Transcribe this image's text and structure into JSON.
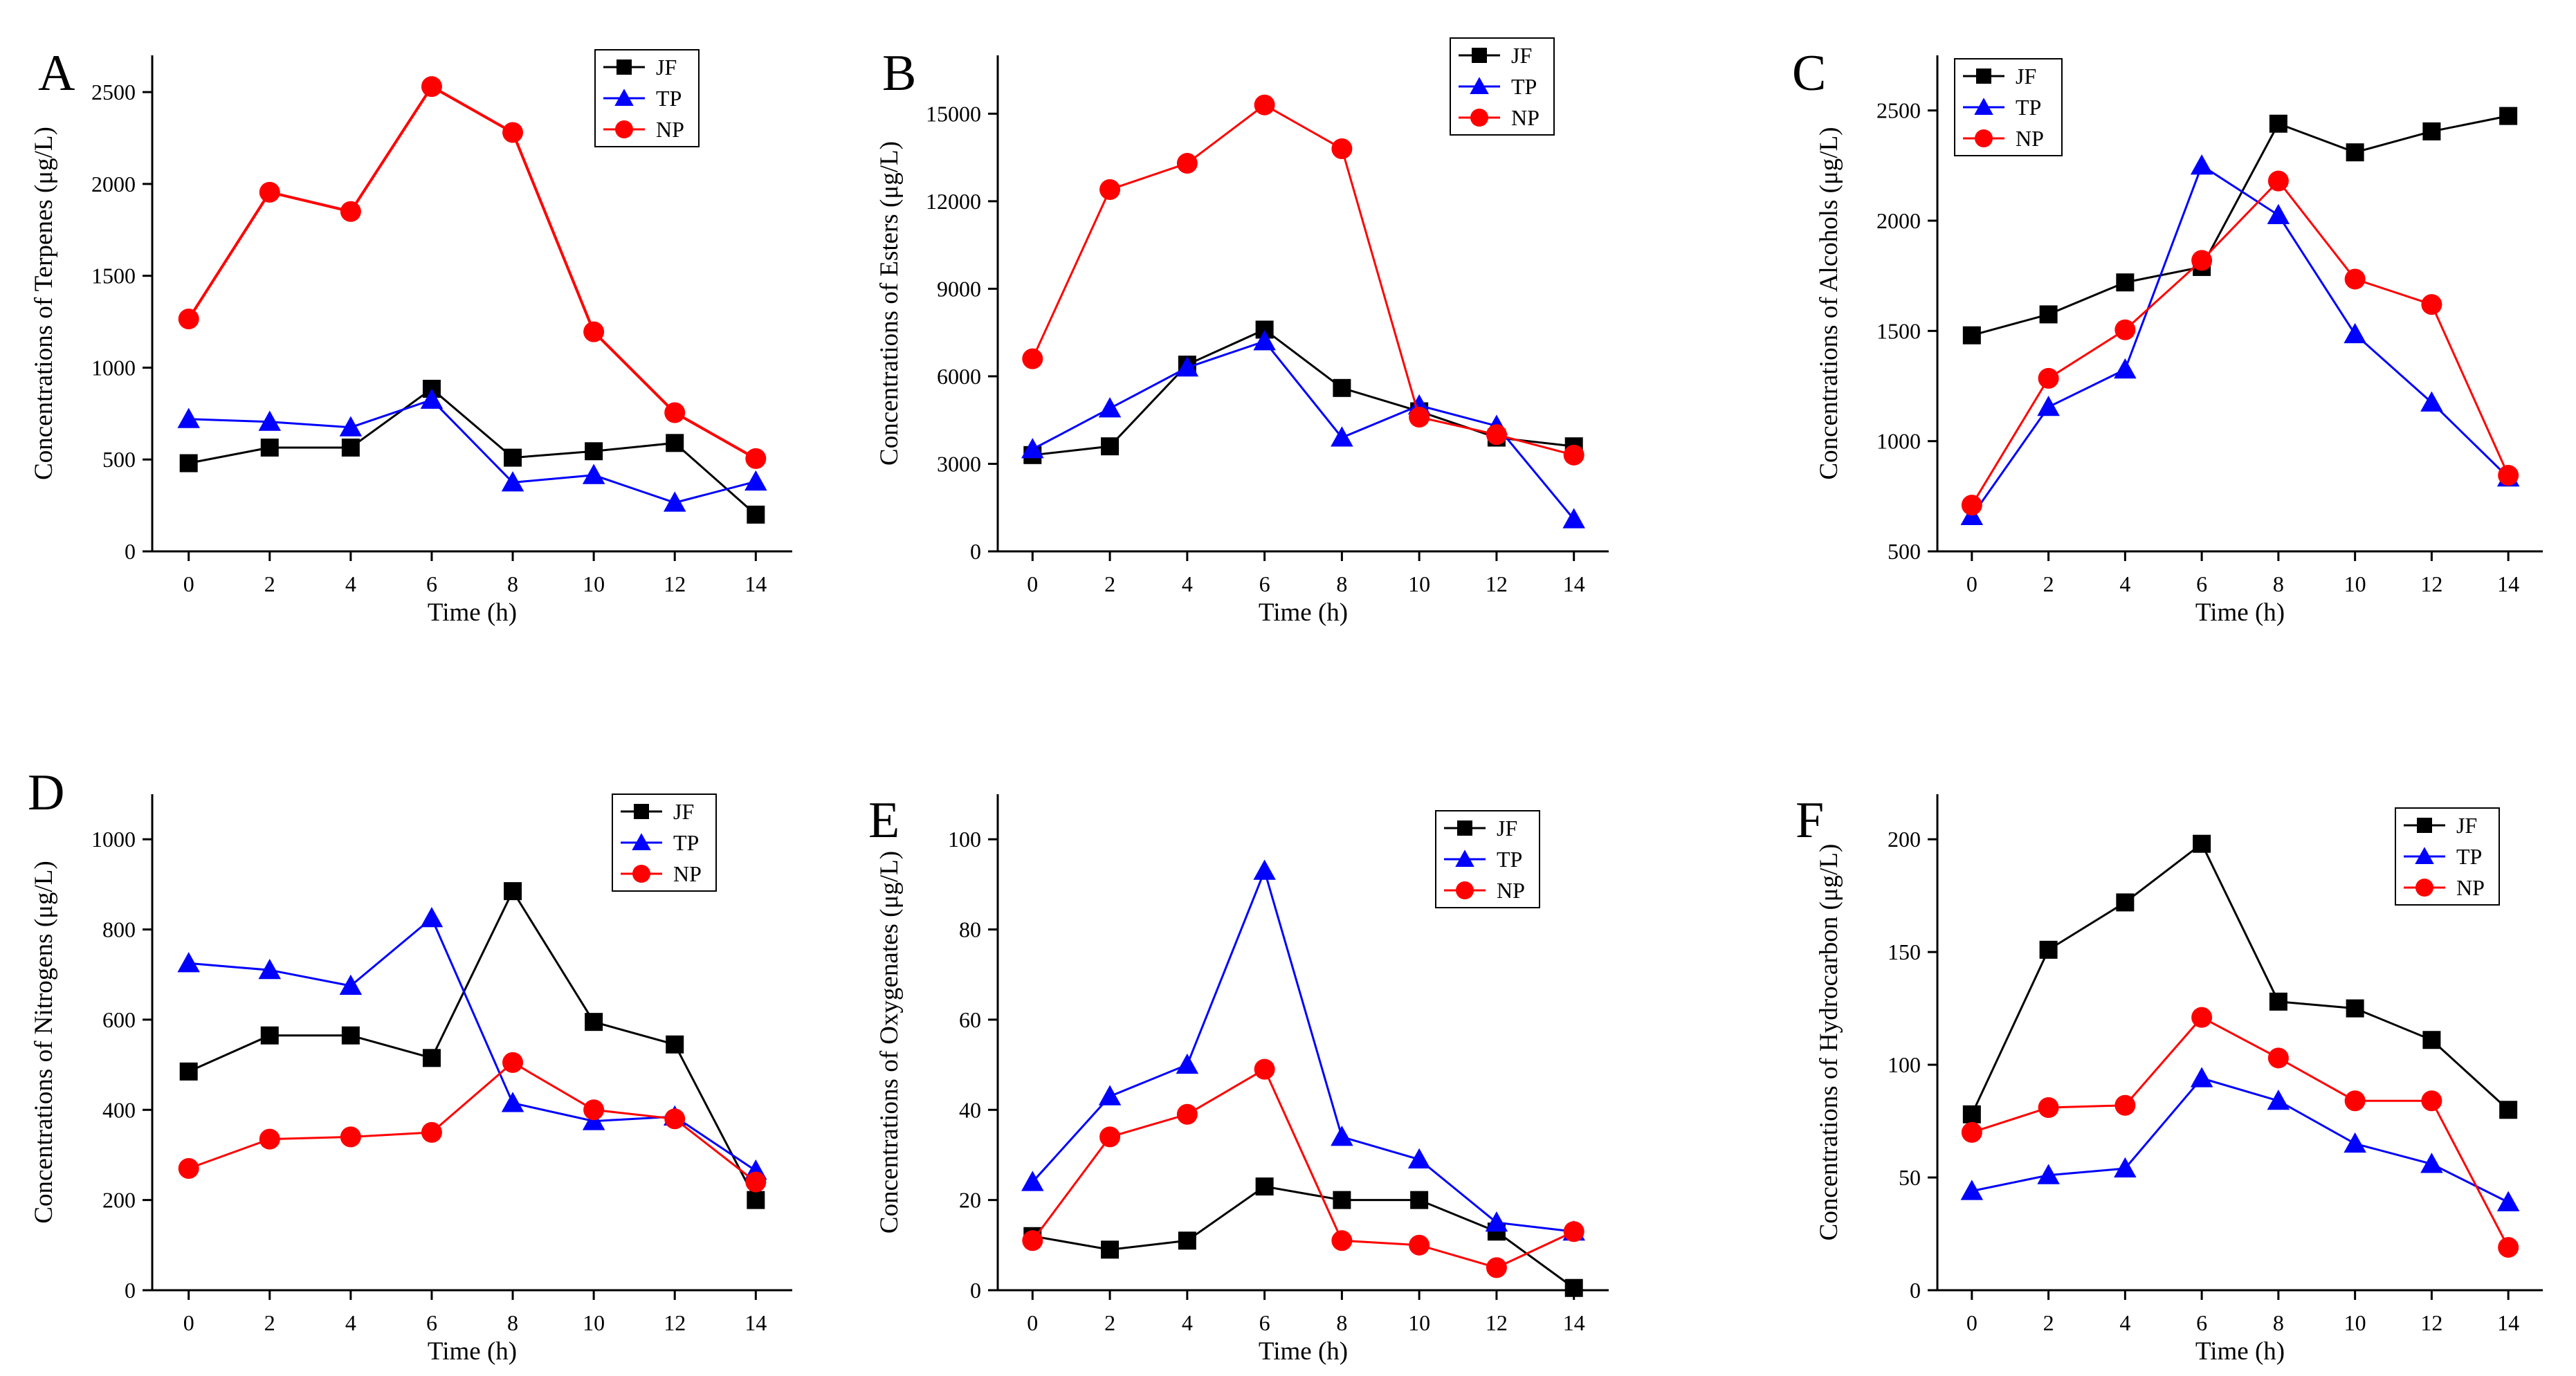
{
  "figure": {
    "x_label": "Time (h)",
    "x_ticks": [
      "0",
      "2",
      "4",
      "6",
      "8",
      "10",
      "12",
      "14"
    ],
    "series_styles": [
      {
        "name": "JF",
        "color": "#000000",
        "marker": "square"
      },
      {
        "name": "TP",
        "color": "#0000ff",
        "marker": "triangle"
      },
      {
        "name": "NP",
        "color": "#ff0000",
        "marker": "circle"
      }
    ]
  },
  "chart_data": [
    {
      "panel": "A",
      "type": "line",
      "xlabel": "Time (h)",
      "ylabel": "Concentrations of Terpenes (μg/L)",
      "x": [
        0,
        2,
        4,
        6,
        8,
        10,
        12,
        14
      ],
      "ylim": [
        0,
        2700
      ],
      "yticks": [
        0,
        500,
        1000,
        1500,
        2000,
        2500
      ],
      "series": [
        {
          "name": "JF",
          "values": [
            480,
            565,
            565,
            885,
            510,
            545,
            590,
            200
          ]
        },
        {
          "name": "TP",
          "values": [
            720,
            705,
            675,
            825,
            375,
            415,
            265,
            380
          ]
        },
        {
          "name": "NP",
          "values": [
            1265,
            1955,
            1850,
            2530,
            2280,
            1195,
            755,
            505
          ]
        }
      ]
    },
    {
      "panel": "B",
      "type": "line",
      "xlabel": "Time (h)",
      "ylabel": "Concentrations of Esters (μg/L)",
      "x": [
        0,
        2,
        4,
        6,
        8,
        10,
        12,
        14
      ],
      "ylim": [
        0,
        17000
      ],
      "yticks": [
        0,
        3000,
        6000,
        9000,
        12000,
        15000
      ],
      "series": [
        {
          "name": "JF",
          "values": [
            3300,
            3600,
            6400,
            7600,
            5600,
            4800,
            3900,
            3600
          ]
        },
        {
          "name": "TP",
          "values": [
            3500,
            4900,
            6300,
            7200,
            3900,
            5000,
            4300,
            1100
          ]
        },
        {
          "name": "NP",
          "values": [
            6600,
            12400,
            13300,
            15300,
            13800,
            4600,
            4000,
            3300
          ]
        }
      ]
    },
    {
      "panel": "C",
      "type": "line",
      "xlabel": "Time (h)",
      "ylabel": "Concentrations of Alcohols (μg/L)",
      "x": [
        0,
        2,
        4,
        6,
        8,
        10,
        12,
        14
      ],
      "ylim": [
        500,
        2750
      ],
      "yticks": [
        500,
        1000,
        1500,
        2000,
        2500
      ],
      "series": [
        {
          "name": "JF",
          "values": [
            1480,
            1575,
            1720,
            1790,
            2440,
            2310,
            2405,
            2475
          ]
        },
        {
          "name": "TP",
          "values": [
            660,
            1155,
            1325,
            2250,
            2025,
            1485,
            1175,
            835
          ]
        },
        {
          "name": "NP",
          "values": [
            710,
            1285,
            1505,
            1820,
            2180,
            1735,
            1620,
            845
          ]
        }
      ]
    },
    {
      "panel": "D",
      "type": "line",
      "xlabel": "Time (h)",
      "ylabel": "Concentrations of Nitrogens (μg/L)",
      "x": [
        0,
        2,
        4,
        6,
        8,
        10,
        12,
        14
      ],
      "ylim": [
        0,
        1100
      ],
      "yticks": [
        0,
        200,
        400,
        600,
        800,
        1000
      ],
      "series": [
        {
          "name": "JF",
          "values": [
            485,
            565,
            565,
            515,
            885,
            595,
            545,
            200
          ]
        },
        {
          "name": "TP",
          "values": [
            725,
            710,
            675,
            825,
            415,
            375,
            385,
            265
          ]
        },
        {
          "name": "NP",
          "values": [
            270,
            335,
            340,
            350,
            505,
            400,
            380,
            240
          ]
        }
      ]
    },
    {
      "panel": "E",
      "type": "line",
      "xlabel": "Time (h)",
      "ylabel": "Concentrations of Oxygenates (μg/L)",
      "x": [
        0,
        2,
        4,
        6,
        8,
        10,
        12,
        14
      ],
      "ylim": [
        0,
        110
      ],
      "yticks": [
        0,
        20,
        40,
        60,
        80,
        100
      ],
      "series": [
        {
          "name": "JF",
          "values": [
            12,
            9,
            11,
            23,
            20,
            20,
            13,
            0.5
          ]
        },
        {
          "name": "TP",
          "values": [
            24,
            43,
            50,
            93,
            34,
            29,
            15,
            13
          ]
        },
        {
          "name": "NP",
          "values": [
            11,
            34,
            39,
            49,
            11,
            10,
            5,
            13
          ]
        }
      ]
    },
    {
      "panel": "F",
      "type": "line",
      "xlabel": "Time (h)",
      "ylabel": "Concentrations of Hydrocarbon (μg/L)",
      "x": [
        0,
        2,
        4,
        6,
        8,
        10,
        12,
        14
      ],
      "ylim": [
        0,
        220
      ],
      "yticks": [
        0,
        50,
        100,
        150,
        200
      ],
      "series": [
        {
          "name": "JF",
          "values": [
            78,
            151,
            172,
            198,
            128,
            125,
            111,
            80
          ]
        },
        {
          "name": "TP",
          "values": [
            44,
            51,
            54,
            94,
            84,
            65,
            56,
            39
          ]
        },
        {
          "name": "NP",
          "values": [
            70,
            81,
            82,
            121,
            103,
            84,
            84,
            19
          ]
        }
      ]
    }
  ]
}
